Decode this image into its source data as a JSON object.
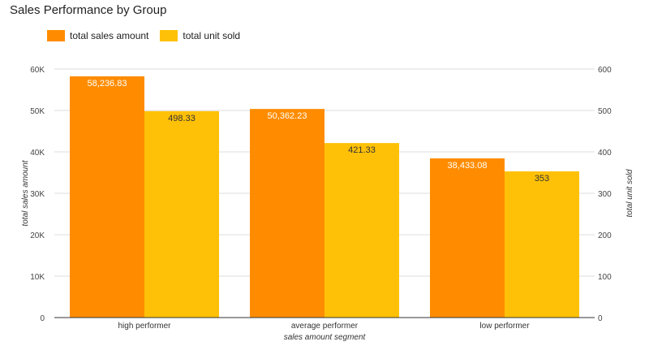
{
  "chart_data": {
    "type": "bar",
    "title": "Sales Performance by Group",
    "categories": [
      "high performer",
      "average performer",
      "low performer"
    ],
    "xlabel": "sales amount segment",
    "series": [
      {
        "name": "total sales amount",
        "axis": "left",
        "color": "#FF8C00",
        "values": [
          58236.83,
          50362.23,
          38433.08
        ],
        "labels": [
          "58,236.83",
          "50,362.23",
          "38,433.08"
        ]
      },
      {
        "name": "total unit sold",
        "axis": "right",
        "color": "#FFC107",
        "values": [
          498.33,
          421.33,
          353
        ],
        "labels": [
          "498.33",
          "421.33",
          "353"
        ]
      }
    ],
    "y_left": {
      "label": "total sales amount",
      "range": [
        0,
        60000
      ],
      "ticks": [
        0,
        10000,
        20000,
        30000,
        40000,
        50000,
        60000
      ],
      "tick_labels": [
        "0",
        "10K",
        "20K",
        "30K",
        "40K",
        "50K",
        "60K"
      ]
    },
    "y_right": {
      "label": "total unit sold",
      "range": [
        0,
        600
      ],
      "ticks": [
        0,
        100,
        200,
        300,
        400,
        500,
        600
      ],
      "tick_labels": [
        "0",
        "100",
        "200",
        "300",
        "400",
        "500",
        "600"
      ]
    },
    "grid": true,
    "legend_position": "top-left"
  }
}
